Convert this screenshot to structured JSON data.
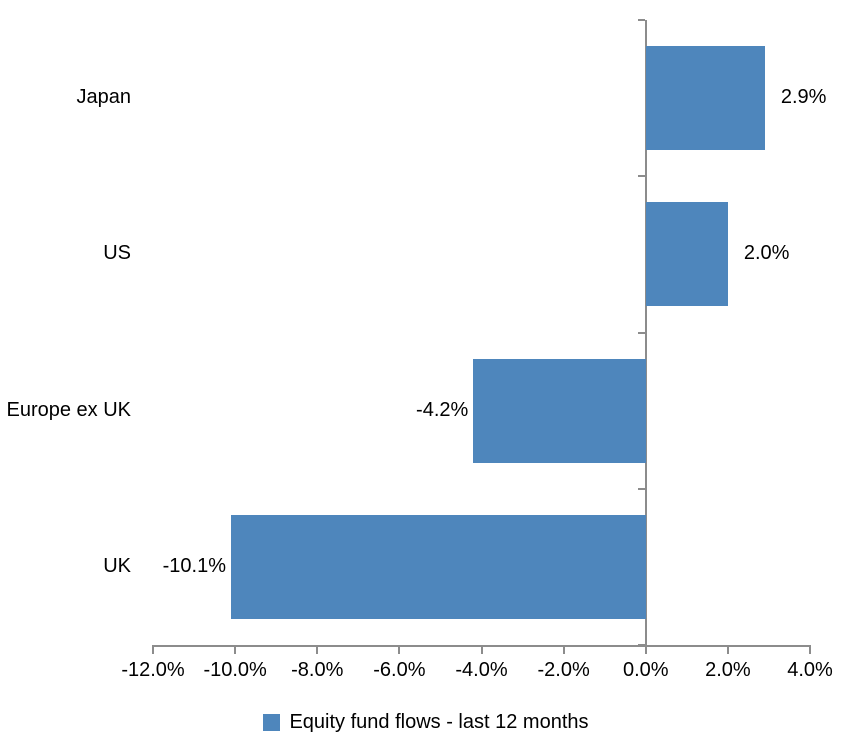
{
  "chart_data": {
    "type": "bar",
    "orientation": "horizontal",
    "title": "",
    "xlabel": "",
    "ylabel": "",
    "categories": [
      "Japan",
      "US",
      "Europe ex UK",
      "UK"
    ],
    "values": [
      2.9,
      2.0,
      -4.2,
      -10.1
    ],
    "value_labels": [
      "2.9%",
      "2.0%",
      "-4.2%",
      "-10.1%"
    ],
    "series_name": "Equity fund flows - last 12 months",
    "xlim": [
      -12,
      4
    ],
    "x_ticks": [
      -12,
      -10,
      -8,
      -6,
      -4,
      -2,
      0,
      2,
      4
    ],
    "x_tick_labels": [
      "-12.0%",
      "-10.0%",
      "-8.0%",
      "-6.0%",
      "-4.0%",
      "-2.0%",
      "0.0%",
      "2.0%",
      "4.0%"
    ],
    "grid": false,
    "legend_position": "bottom",
    "bar_color": "#4E86BC",
    "axis_color": "#8C8C8C",
    "text_color": "#000000"
  }
}
